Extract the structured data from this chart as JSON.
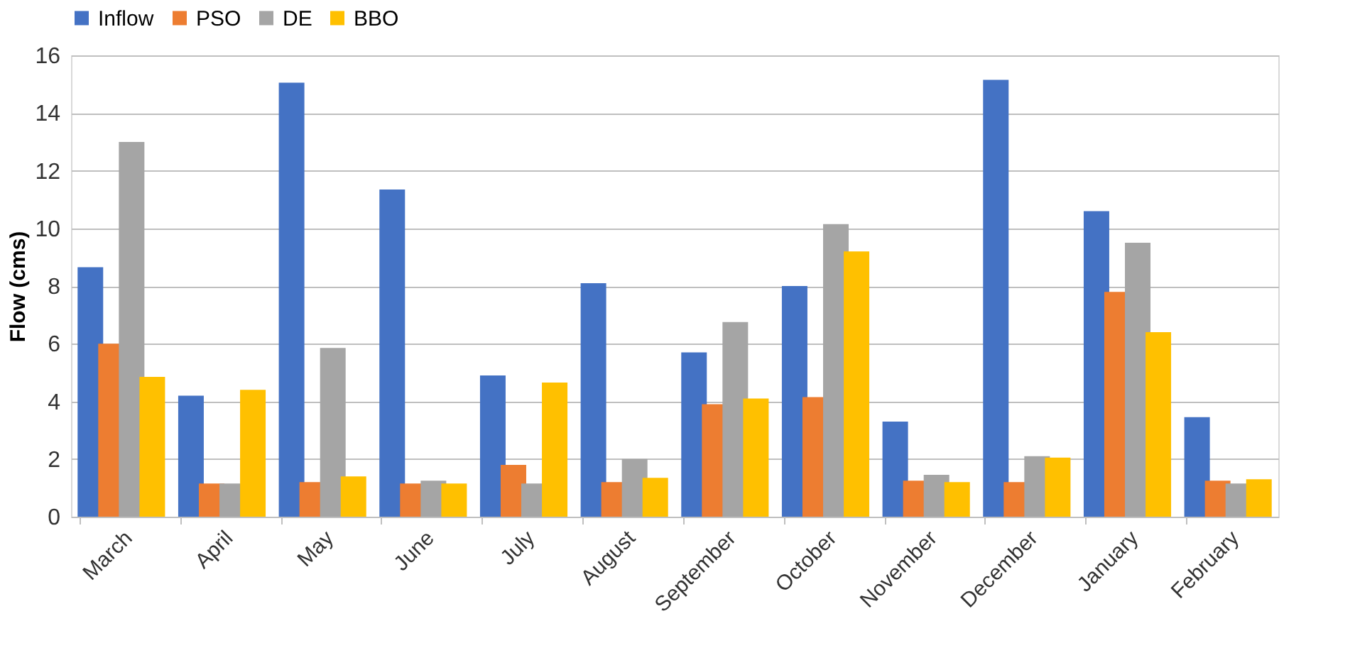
{
  "chart_data": {
    "type": "bar",
    "ylabel": "Flow (cms)",
    "categories": [
      "March",
      "April",
      "May",
      "June",
      "July",
      "August",
      "September",
      "October",
      "November",
      "December",
      "January",
      "February"
    ],
    "series": [
      {
        "name": "Inflow",
        "color": "#4472c4",
        "values": [
          8.65,
          4.2,
          15.05,
          11.35,
          4.9,
          8.1,
          5.7,
          8.0,
          3.3,
          15.15,
          10.6,
          3.45
        ]
      },
      {
        "name": "PSO",
        "color": "#ed7d31",
        "values": [
          6.0,
          1.15,
          1.2,
          1.15,
          1.8,
          1.2,
          3.9,
          4.15,
          1.25,
          1.2,
          7.8,
          1.25
        ]
      },
      {
        "name": "DE",
        "color": "#a5a5a5",
        "values": [
          13.0,
          1.15,
          5.85,
          1.25,
          1.15,
          2.0,
          6.75,
          10.15,
          1.45,
          2.1,
          9.5,
          1.15
        ]
      },
      {
        "name": "BBO",
        "color": "#ffc000",
        "values": [
          4.85,
          4.4,
          1.4,
          1.15,
          4.65,
          1.35,
          4.1,
          9.2,
          1.2,
          2.05,
          6.4,
          1.3
        ]
      }
    ],
    "ylim": [
      0,
      16
    ],
    "yticks": [
      0,
      2,
      4,
      6,
      8,
      10,
      12,
      14,
      16
    ],
    "grid": "y",
    "legend": "top"
  }
}
